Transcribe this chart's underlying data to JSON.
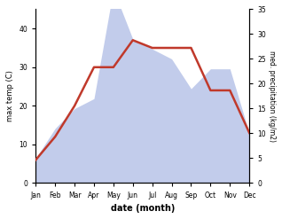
{
  "months": [
    "Jan",
    "Feb",
    "Mar",
    "Apr",
    "May",
    "Jun",
    "Jul",
    "Aug",
    "Sep",
    "Oct",
    "Nov",
    "Dec"
  ],
  "temp": [
    6,
    12,
    20,
    30,
    30,
    37,
    35,
    35,
    35,
    24,
    24,
    13
  ],
  "precip": [
    5,
    11,
    15,
    17,
    39,
    29,
    27,
    25,
    19,
    23,
    23,
    10
  ],
  "temp_color": "#c0392b",
  "precip_fill_color": "#b8c4e8",
  "xlabel": "date (month)",
  "ylabel_left": "max temp (C)",
  "ylabel_right": "med. precipitation (kg/m2)",
  "ylim_left": [
    0,
    45
  ],
  "ylim_right": [
    0,
    35
  ],
  "yticks_left": [
    0,
    10,
    20,
    30,
    40
  ],
  "yticks_right": [
    0,
    5,
    10,
    15,
    20,
    25,
    30,
    35
  ],
  "bg_color": "#ffffff"
}
